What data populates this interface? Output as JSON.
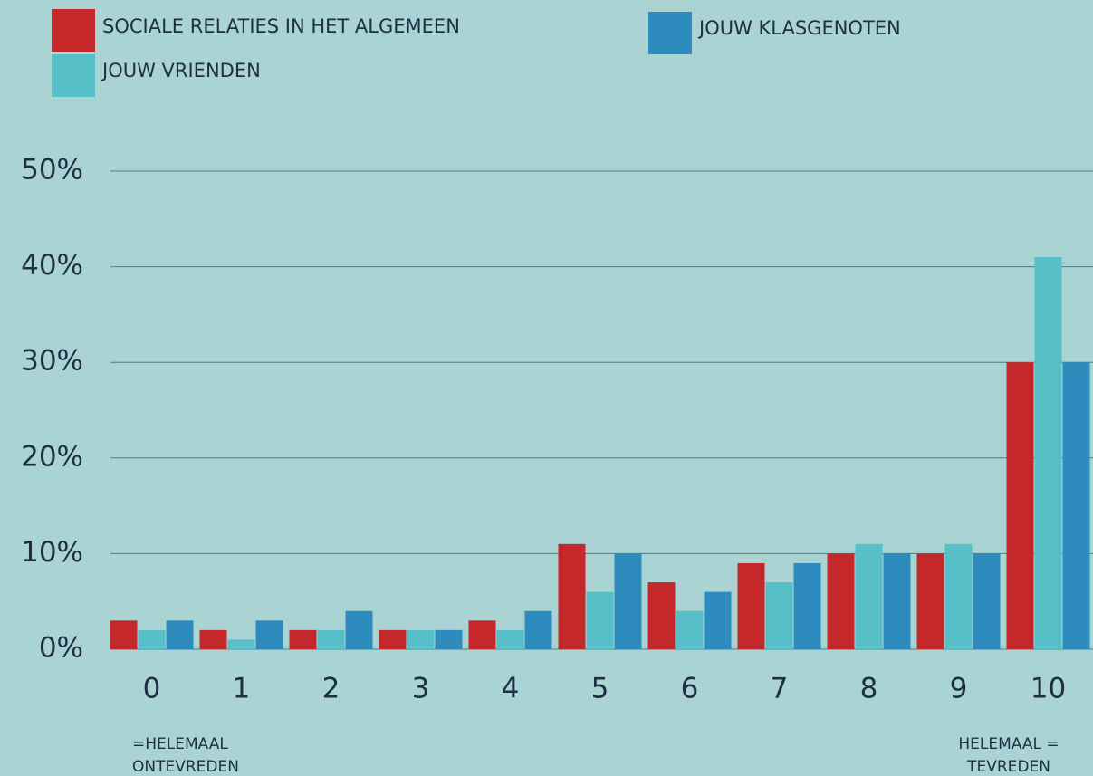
{
  "chart_data": {
    "type": "bar",
    "categories": [
      "0",
      "1",
      "2",
      "3",
      "4",
      "5",
      "6",
      "7",
      "8",
      "9",
      "10"
    ],
    "series": [
      {
        "name": "SOCIALE RELATIES IN HET ALGEMEEN",
        "color": "#c5282b",
        "values": [
          3,
          2,
          2,
          2,
          3,
          11,
          7,
          9,
          10,
          10,
          30
        ]
      },
      {
        "name": "JOUW VRIENDEN",
        "color": "#56bfc8",
        "values": [
          2,
          1,
          2,
          2,
          2,
          6,
          4,
          7,
          11,
          11,
          41
        ]
      },
      {
        "name": "JOUW KLASGENOTEN",
        "color": "#2e8bbd",
        "values": [
          3,
          3,
          4,
          2,
          4,
          10,
          6,
          9,
          10,
          10,
          30
        ]
      }
    ],
    "ylim": [
      0,
      50
    ],
    "yticks": [
      {
        "value": 0,
        "label": "0%"
      },
      {
        "value": 10,
        "label": "10%"
      },
      {
        "value": 20,
        "label": "20%"
      },
      {
        "value": 30,
        "label": "30%"
      },
      {
        "value": 40,
        "label": "40%"
      },
      {
        "value": 50,
        "label": "50%"
      }
    ],
    "grid": true,
    "annotations": [
      [
        "=HELEMAAL",
        "ONTEVREDEN"
      ],
      [
        "HELEMAAL =",
        "TEVREDEN"
      ]
    ]
  }
}
